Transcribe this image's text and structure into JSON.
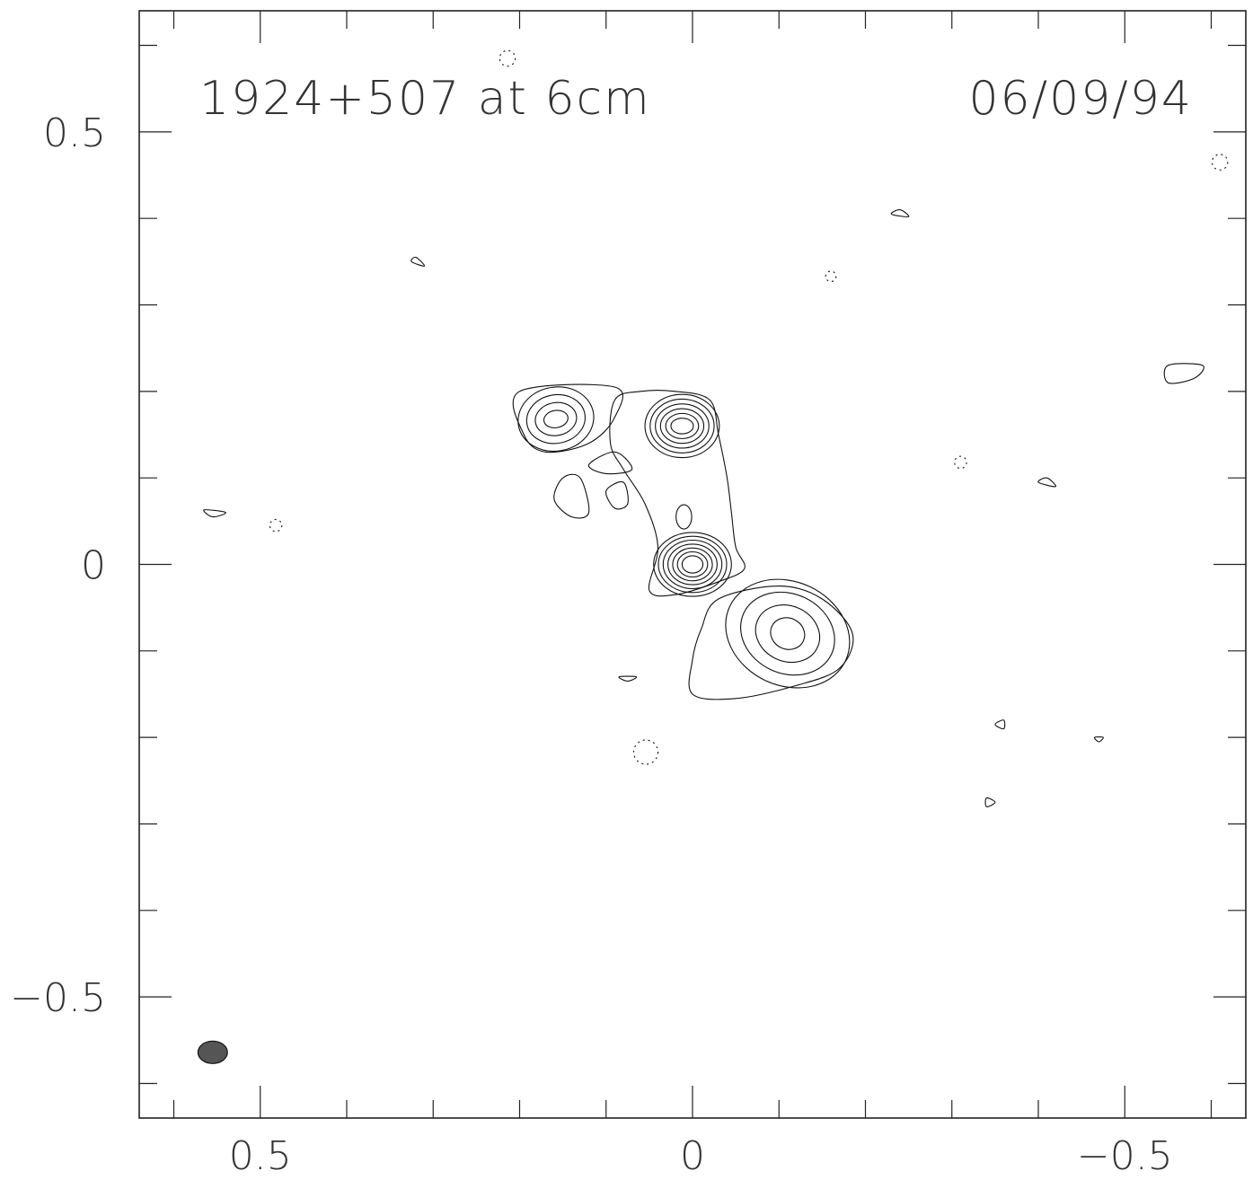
{
  "chart_data": {
    "type": "contour",
    "title": "1924+507 at 6cm",
    "date": "06/09/94",
    "xlabel": "",
    "ylabel": "",
    "xlim": [
      0.64,
      -0.64
    ],
    "ylim": [
      -0.64,
      0.64
    ],
    "x_axis_reversed": true,
    "x_tick_labels": [
      {
        "value": 0.5,
        "label": "0.5"
      },
      {
        "value": 0,
        "label": "0"
      },
      {
        "value": -0.5,
        "label": "−0.5"
      }
    ],
    "y_tick_labels": [
      {
        "value": 0.5,
        "label": "0.5"
      },
      {
        "value": 0,
        "label": "0"
      },
      {
        "value": -0.5,
        "label": "−0.5"
      }
    ],
    "minor_tick_step": 0.1,
    "contour_style": {
      "line_color": "#111111",
      "negative_dashed": true
    },
    "beam": {
      "x": 0.555,
      "y": -0.564,
      "major": 0.034,
      "minor": 0.026,
      "fill": "#555555"
    },
    "components": [
      {
        "name": "core",
        "cx": 0.0,
        "cy": 0.0,
        "rx0": 0.012,
        "ry0": 0.01,
        "drx": 0.0055,
        "dry": 0.0045,
        "levels": 7,
        "rot": 0
      },
      {
        "name": "knot-n",
        "cx": 0.012,
        "cy": 0.16,
        "rx0": 0.013,
        "ry0": 0.009,
        "drx": 0.006,
        "dry": 0.0055,
        "levels": 6,
        "rot": 0
      },
      {
        "name": "knot-mid",
        "cx": 0.01,
        "cy": 0.055,
        "rx0": 0.009,
        "ry0": 0.014,
        "drx": 0.0,
        "dry": 0.0,
        "levels": 1,
        "rot": 0
      },
      {
        "name": "knot-nw",
        "cx": 0.158,
        "cy": 0.168,
        "rx0": 0.014,
        "ry0": 0.01,
        "drx": 0.01,
        "dry": 0.009,
        "levels": 4,
        "rot": -10
      },
      {
        "name": "knot-se",
        "cx": -0.11,
        "cy": -0.08,
        "rx0": 0.02,
        "ry0": 0.018,
        "drx": 0.018,
        "dry": 0.014,
        "levels": 4,
        "rot": 25
      }
    ],
    "outer_contours": [
      [
        [
          0.06,
          0.2
        ],
        [
          0.09,
          0.19
        ],
        [
          0.095,
          0.14
        ],
        [
          0.08,
          0.11
        ],
        [
          0.055,
          0.07
        ],
        [
          0.04,
          0.02
        ],
        [
          0.05,
          -0.03
        ],
        [
          0.02,
          -0.035
        ],
        [
          -0.03,
          -0.02
        ],
        [
          -0.06,
          -0.005
        ],
        [
          -0.05,
          0.02
        ],
        [
          -0.045,
          0.06
        ],
        [
          -0.04,
          0.1
        ],
        [
          -0.03,
          0.15
        ],
        [
          -0.02,
          0.19
        ],
        [
          0.02,
          0.2
        ],
        [
          0.06,
          0.2
        ]
      ],
      [
        [
          0.2,
          0.2
        ],
        [
          0.09,
          0.205
        ],
        [
          0.09,
          0.17
        ],
        [
          0.12,
          0.14
        ],
        [
          0.17,
          0.13
        ],
        [
          0.195,
          0.15
        ],
        [
          0.2,
          0.2
        ]
      ],
      [
        [
          -0.03,
          -0.04
        ],
        [
          -0.1,
          -0.025
        ],
        [
          -0.15,
          -0.04
        ],
        [
          -0.185,
          -0.08
        ],
        [
          -0.17,
          -0.12
        ],
        [
          -0.12,
          -0.14
        ],
        [
          -0.05,
          -0.155
        ],
        [
          0.0,
          -0.15
        ],
        [
          0.0,
          -0.11
        ],
        [
          -0.01,
          -0.075
        ],
        [
          -0.03,
          -0.04
        ]
      ]
    ],
    "island_contours": [
      [
        [
          0.13,
          0.1
        ],
        [
          0.12,
          0.06
        ],
        [
          0.14,
          0.055
        ],
        [
          0.16,
          0.075
        ],
        [
          0.15,
          0.1
        ],
        [
          0.13,
          0.1
        ]
      ],
      [
        [
          0.08,
          0.095
        ],
        [
          0.075,
          0.07
        ],
        [
          0.09,
          0.065
        ],
        [
          0.1,
          0.085
        ],
        [
          0.08,
          0.095
        ]
      ],
      [
        [
          0.09,
          0.13
        ],
        [
          0.07,
          0.11
        ],
        [
          0.1,
          0.105
        ],
        [
          0.12,
          0.115
        ],
        [
          0.09,
          0.13
        ]
      ],
      [
        [
          0.565,
          0.063
        ],
        [
          0.54,
          0.06
        ],
        [
          0.555,
          0.055
        ],
        [
          0.565,
          0.063
        ]
      ],
      [
        [
          0.32,
          0.355
        ],
        [
          0.31,
          0.345
        ],
        [
          0.325,
          0.35
        ],
        [
          0.32,
          0.355
        ]
      ],
      [
        [
          -0.24,
          0.41
        ],
        [
          -0.23,
          0.405
        ],
        [
          -0.25,
          0.402
        ],
        [
          -0.24,
          0.41
        ]
      ],
      [
        [
          -0.59,
          0.23
        ],
        [
          -0.55,
          0.23
        ],
        [
          -0.55,
          0.21
        ],
        [
          -0.58,
          0.215
        ],
        [
          -0.59,
          0.23
        ]
      ],
      [
        [
          -0.41,
          0.1
        ],
        [
          -0.4,
          0.095
        ],
        [
          -0.42,
          0.09
        ],
        [
          -0.41,
          0.1
        ]
      ],
      [
        [
          -0.36,
          -0.18
        ],
        [
          -0.35,
          -0.185
        ],
        [
          -0.36,
          -0.19
        ],
        [
          -0.36,
          -0.18
        ]
      ],
      [
        [
          -0.34,
          -0.27
        ],
        [
          -0.35,
          -0.275
        ],
        [
          -0.34,
          -0.28
        ],
        [
          -0.34,
          -0.27
        ]
      ],
      [
        [
          -0.465,
          -0.2
        ],
        [
          -0.475,
          -0.2
        ],
        [
          -0.47,
          -0.205
        ],
        [
          -0.465,
          -0.2
        ]
      ],
      [
        [
          0.085,
          -0.13
        ],
        [
          0.065,
          -0.13
        ],
        [
          0.075,
          -0.135
        ],
        [
          0.085,
          -0.13
        ]
      ]
    ],
    "negative_contours": [
      {
        "x": 0.214,
        "y": 0.585,
        "r": 0.009
      },
      {
        "x": -0.61,
        "y": 0.465,
        "r": 0.009
      },
      {
        "x": 0.482,
        "y": 0.045,
        "r": 0.007
      },
      {
        "x": 0.054,
        "y": -0.217,
        "r": 0.014
      },
      {
        "x": -0.31,
        "y": 0.118,
        "r": 0.007
      },
      {
        "x": -0.16,
        "y": 0.333,
        "r": 0.006
      }
    ]
  }
}
